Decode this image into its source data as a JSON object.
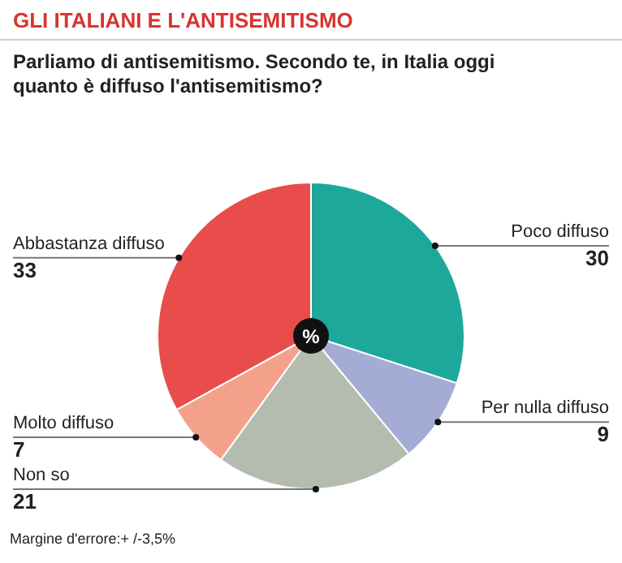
{
  "chart_data": {
    "type": "pie",
    "title": "GLI ITALIANI E L'ANTISEMITISMO",
    "subtitle": "Parliamo di antisemitismo. Secondo te, in Italia oggi quanto è diffuso l'antisemitismo?",
    "categories": [
      "Poco diffuso",
      "Per nulla diffuso",
      "Non so",
      "Molto diffuso",
      "Abbastanza diffuso"
    ],
    "values": [
      30,
      9,
      21,
      7,
      33
    ],
    "colors": [
      "#1ca89a",
      "#a4acd6",
      "#b4bcaf",
      "#f4a18b",
      "#e84d4b"
    ],
    "data_labels": true,
    "legend": false,
    "annotations": [
      "%",
      "Margine d'errore:+ /-3,5%"
    ]
  }
}
